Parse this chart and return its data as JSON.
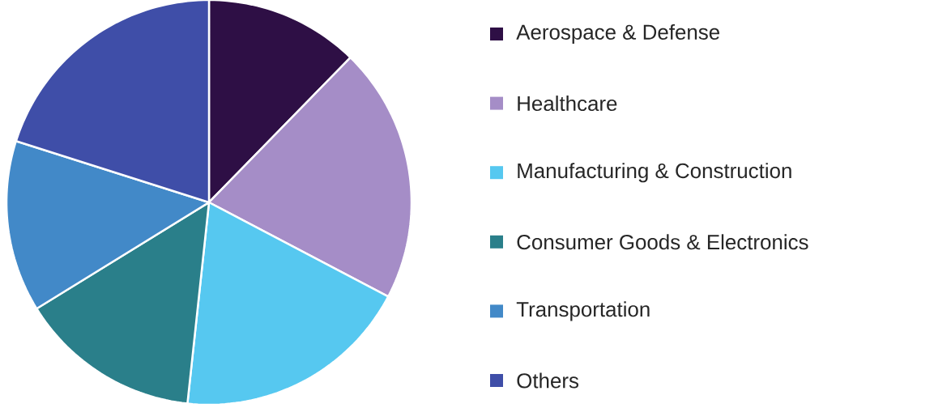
{
  "chart_data": {
    "type": "pie",
    "categories": [
      "Aerospace & Defense",
      "Healthcare",
      "Manufacturing & Construction",
      "Consumer Goods & Electronics",
      "Transportation",
      "Others"
    ],
    "values": [
      12.3,
      20.4,
      19.0,
      14.5,
      13.7,
      20.1
    ],
    "colors": [
      "#2e0f45",
      "#a58dc7",
      "#56c8f0",
      "#2a7f8a",
      "#4289c8",
      "#3f4ea8"
    ],
    "legend": "right"
  }
}
